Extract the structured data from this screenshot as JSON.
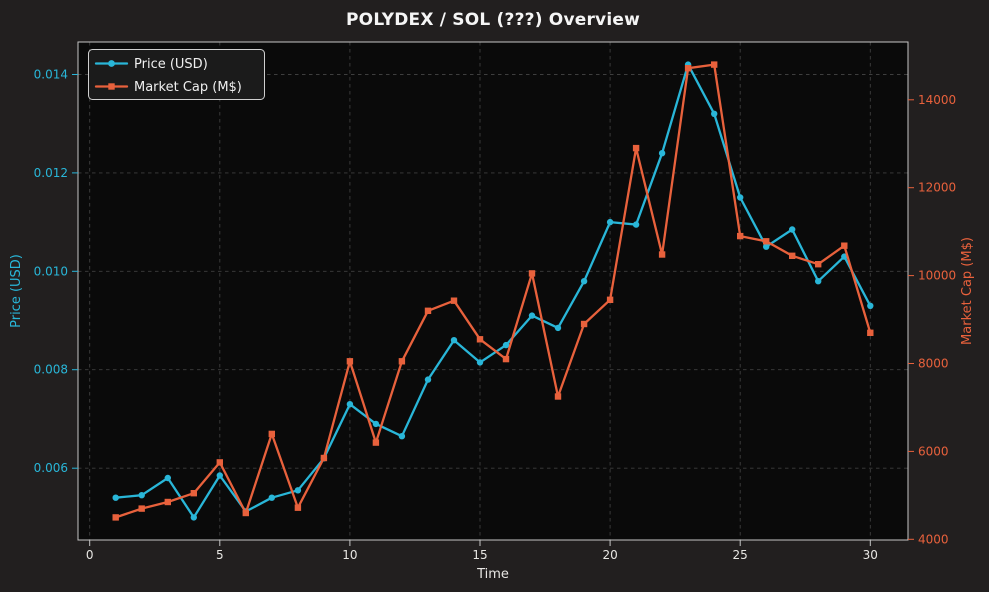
{
  "chart_data": {
    "type": "line",
    "title": "POLYDEX / SOL (???) Overview",
    "x": [
      1,
      2,
      3,
      4,
      5,
      6,
      7,
      8,
      9,
      10,
      11,
      12,
      13,
      14,
      15,
      16,
      17,
      18,
      19,
      20,
      21,
      22,
      23,
      24,
      25,
      26,
      27,
      28,
      29,
      30
    ],
    "series": [
      {
        "name": "Price (USD)",
        "axis": "left",
        "color": "#29b6d8",
        "marker": "circle",
        "values": [
          0.0054,
          0.00545,
          0.0058,
          0.005,
          0.00585,
          0.00512,
          0.0054,
          0.00555,
          0.0062,
          0.0073,
          0.0069,
          0.00665,
          0.0078,
          0.0086,
          0.00815,
          0.0085,
          0.0091,
          0.00885,
          0.0098,
          0.011,
          0.01095,
          0.0124,
          0.0142,
          0.0132,
          0.0115,
          0.0105,
          0.01085,
          0.0098,
          0.0103,
          0.0093
        ]
      },
      {
        "name": "Market Cap (M$)",
        "axis": "right",
        "color": "#e8613c",
        "marker": "square",
        "values": [
          4500,
          4700,
          4850,
          5050,
          5750,
          4600,
          6400,
          4720,
          5850,
          8050,
          6200,
          8050,
          9200,
          9430,
          8550,
          8100,
          10050,
          7250,
          8900,
          9450,
          12900,
          10480,
          14720,
          14800,
          10900,
          10780,
          10450,
          10260,
          10680,
          8700
        ]
      }
    ],
    "axes": {
      "x": {
        "label": "Time",
        "ticks": [
          0,
          5,
          10,
          15,
          20,
          25,
          30
        ],
        "range": [
          -0.45,
          31.45
        ],
        "color": "#e8e6e3"
      },
      "left": {
        "label": "Price (USD)",
        "tick_labels": [
          "0.006",
          "0.008",
          "0.010",
          "0.012",
          "0.014"
        ],
        "tick_values": [
          0.006,
          0.008,
          0.01,
          0.012,
          0.014
        ],
        "range": [
          0.00454,
          0.01466
        ],
        "color": "#29b6d8"
      },
      "right": {
        "label": "Market Cap (M$)",
        "tick_labels": [
          "4000",
          "6000",
          "8000",
          "10000",
          "12000",
          "14000"
        ],
        "tick_values": [
          4000,
          6000,
          8000,
          10000,
          12000,
          14000
        ],
        "range": [
          3985,
          15315
        ],
        "color": "#e8613c"
      }
    },
    "grid": true,
    "legend": {
      "position": "upper-left",
      "items": [
        "Price (USD)",
        "Market Cap (M$)"
      ]
    },
    "colors": {
      "figure_bg": "#221f1f",
      "plot_bg": "#0a0a0a",
      "grid": "#3e3e3e",
      "spine": "#c6c6c6",
      "title": "#f5f5f5",
      "x_tick_text": "#e8e6e3",
      "legend_bg": "#1b1b1b",
      "legend_border": "#cfcfcf",
      "legend_text": "#efefef"
    }
  }
}
